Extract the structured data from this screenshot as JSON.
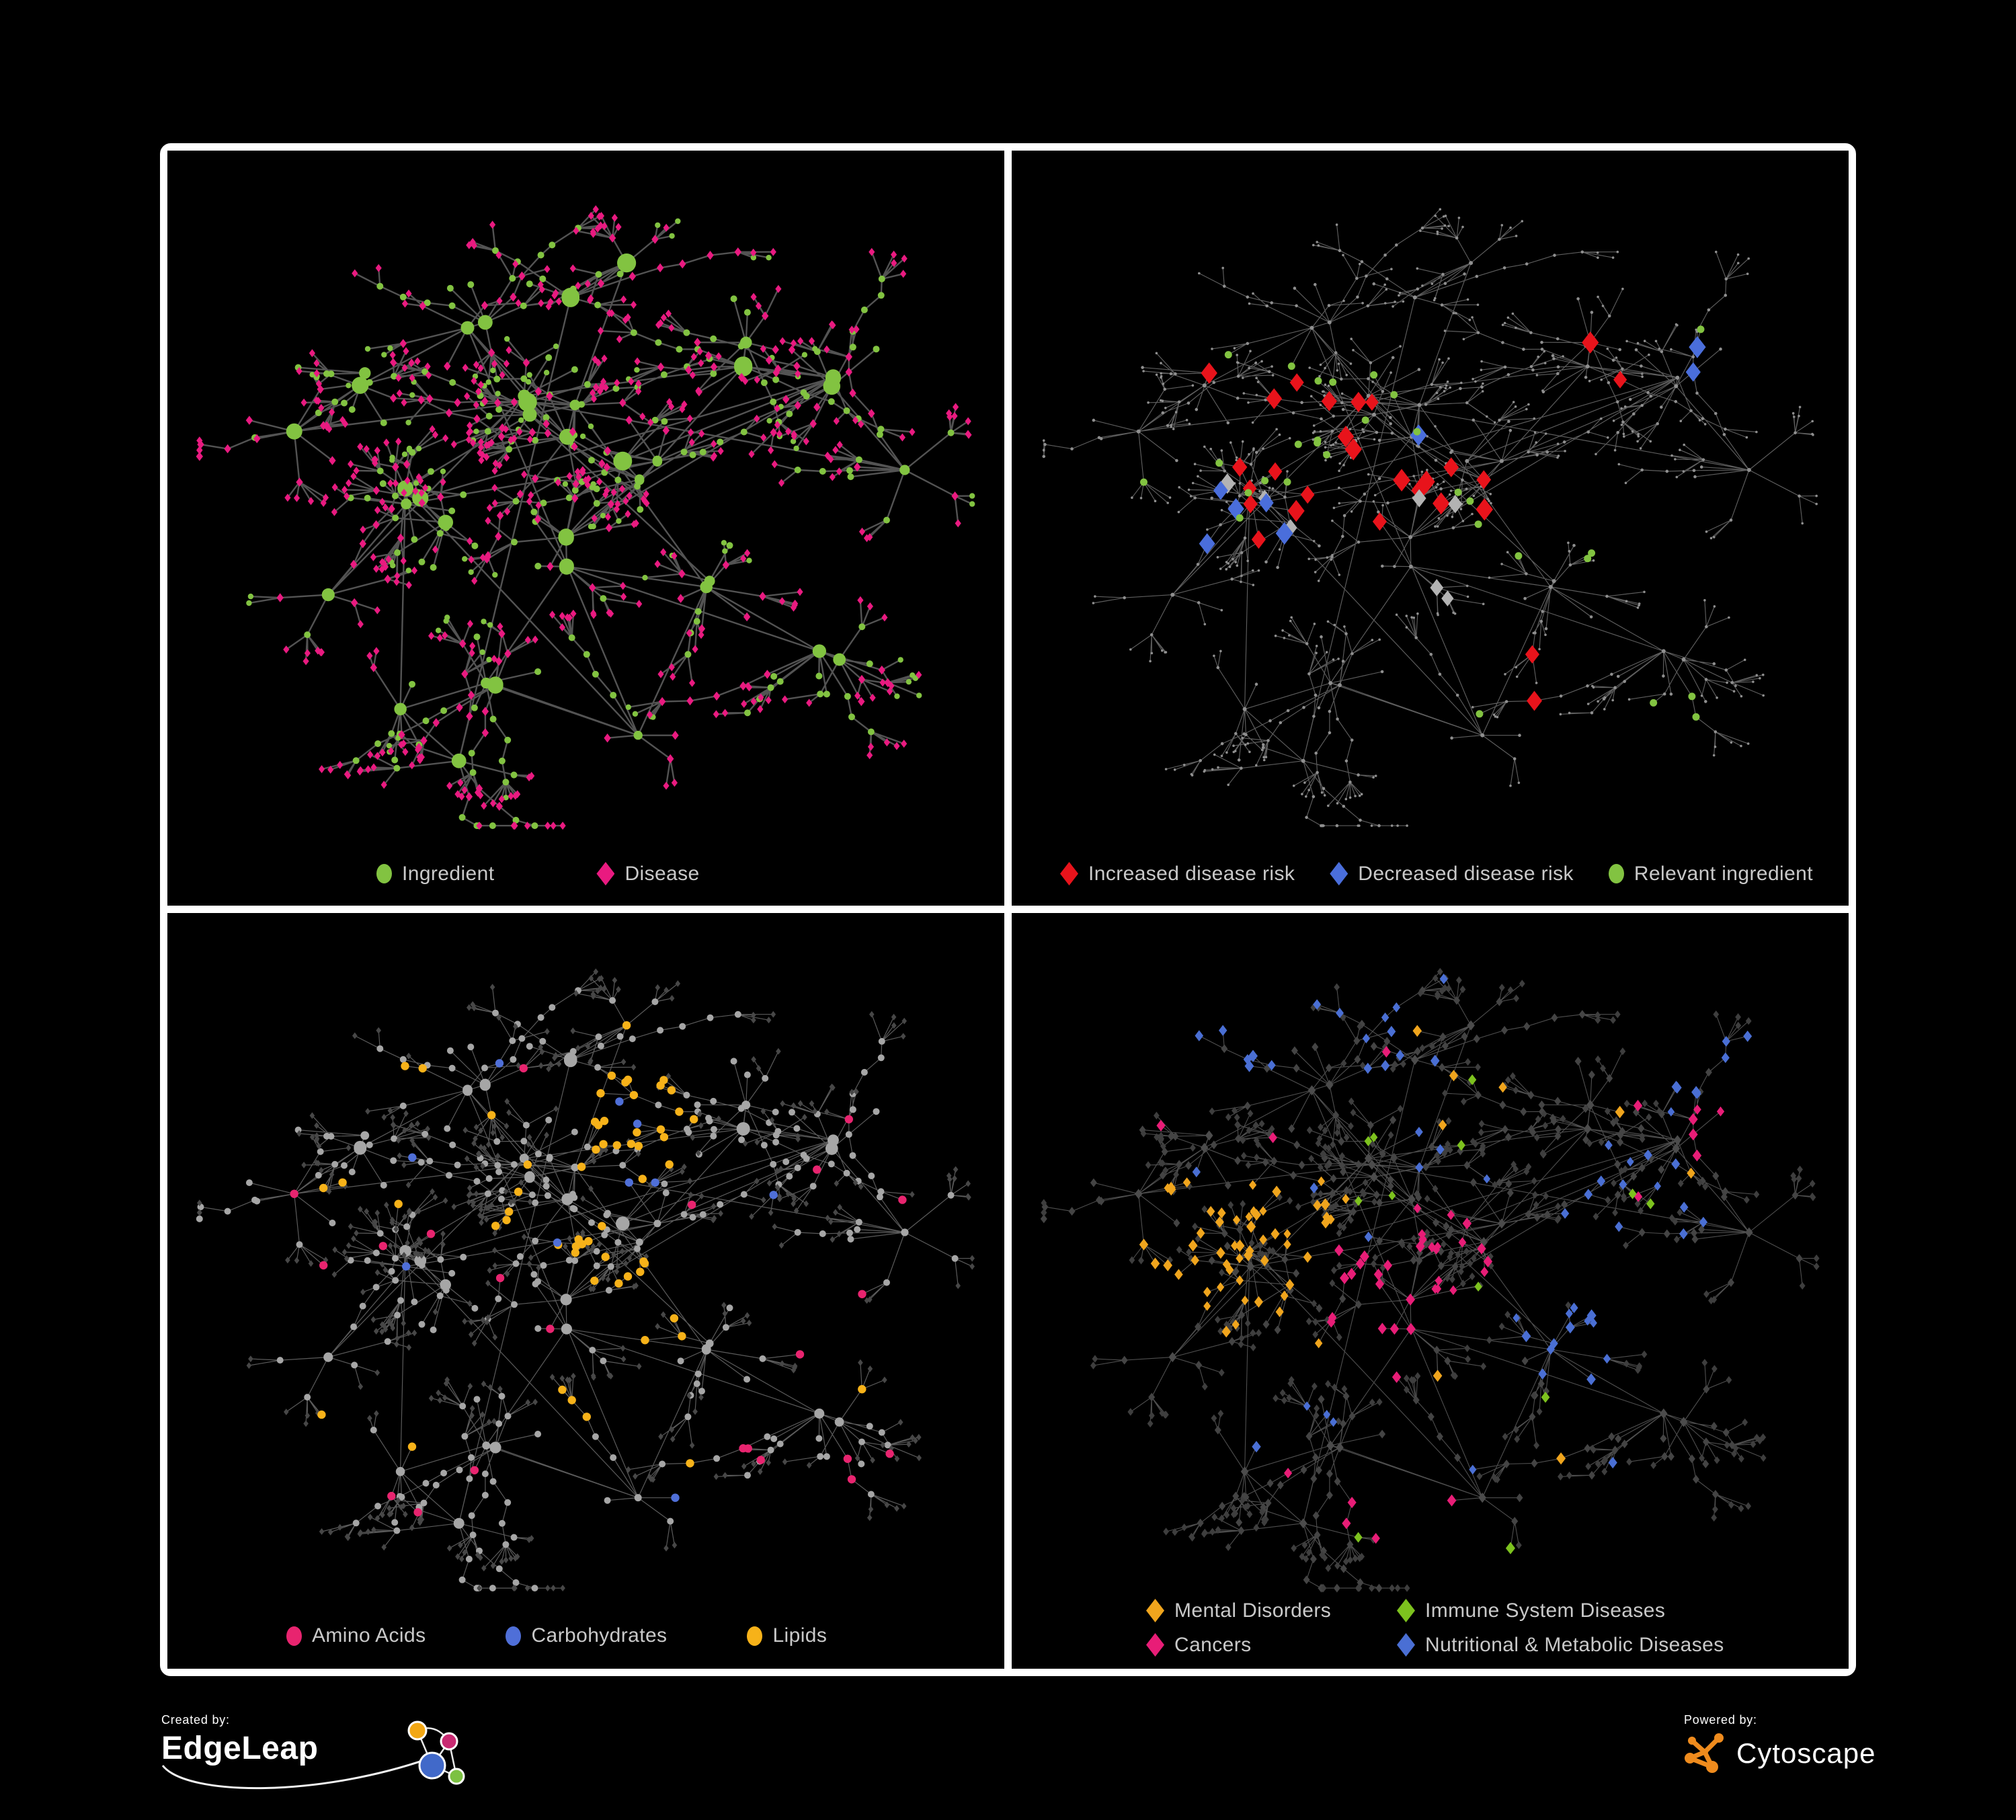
{
  "page": {
    "background": "#000000",
    "frame_border_color": "#FFFFFF"
  },
  "branding": {
    "created_by": {
      "label": "Created by:",
      "brand": "EdgeLeap",
      "logo_colors": {
        "orange": "#F2A714",
        "pink": "#C82A72",
        "blue": "#4169C9",
        "green": "#7CC142",
        "stroke": "#FFFFFF"
      }
    },
    "powered_by": {
      "label": "Powered by:",
      "brand": "Cytoscape",
      "logo_color": "#EF8B1D"
    }
  },
  "chart_data": {
    "type": "network",
    "title": "",
    "description": "Four coordinated views of one ingredient-disease association network (same topology, different node colorings), rendered on black with white panel frames.",
    "background": "#000000",
    "legend_text_color": "#C9C9C9",
    "topology": {
      "seed": 20240,
      "extra_links": 20,
      "clusters": [
        {
          "x": 0.44,
          "y": 0.38,
          "hubs": 5,
          "spread": 0.1
        },
        {
          "x": 0.3,
          "y": 0.5,
          "hubs": 4,
          "spread": 0.09
        },
        {
          "x": 0.55,
          "y": 0.47,
          "hubs": 3,
          "spread": 0.08
        },
        {
          "x": 0.47,
          "y": 0.57,
          "hubs": 2,
          "spread": 0.06
        },
        {
          "x": 0.52,
          "y": 0.18,
          "hubs": 2,
          "spread": 0.08
        },
        {
          "x": 0.35,
          "y": 0.22,
          "hubs": 2,
          "spread": 0.07
        },
        {
          "x": 0.24,
          "y": 0.33,
          "hubs": 2,
          "spread": 0.06
        },
        {
          "x": 0.12,
          "y": 0.42,
          "hubs": 1,
          "spread": 0.05
        },
        {
          "x": 0.68,
          "y": 0.27,
          "hubs": 2,
          "spread": 0.06
        },
        {
          "x": 0.82,
          "y": 0.33,
          "hubs": 2,
          "spread": 0.07
        },
        {
          "x": 0.9,
          "y": 0.45,
          "hubs": 1,
          "spread": 0.05
        },
        {
          "x": 0.66,
          "y": 0.6,
          "hubs": 2,
          "spread": 0.06
        },
        {
          "x": 0.8,
          "y": 0.73,
          "hubs": 2,
          "spread": 0.06
        },
        {
          "x": 0.55,
          "y": 0.85,
          "hubs": 1,
          "spread": 0.05
        },
        {
          "x": 0.4,
          "y": 0.75,
          "hubs": 2,
          "spread": 0.06
        },
        {
          "x": 0.25,
          "y": 0.8,
          "hubs": 1,
          "spread": 0.05
        },
        {
          "x": 0.17,
          "y": 0.65,
          "hubs": 1,
          "spread": 0.05
        },
        {
          "x": 0.33,
          "y": 0.9,
          "hubs": 1,
          "spread": 0.04
        }
      ]
    },
    "panels": [
      {
        "id": "ingredient-disease",
        "position": "top-left",
        "palette": {
          "ingredient": "#82C341",
          "disease": "#E91A80"
        },
        "style": {
          "edge_color": "#5C5C5C",
          "edge_width": 2.4,
          "edge_opacity": 0.9
        },
        "approx_counts": {
          "ingredient": 240,
          "disease": 450
        },
        "legend": [
          {
            "shape": "circle",
            "color": "#82C341",
            "label": "Ingredient"
          },
          {
            "shape": "diamond",
            "color": "#E91A80",
            "label": "Disease"
          }
        ]
      },
      {
        "id": "disease-risk",
        "position": "top-right",
        "style": {
          "edge_color": "#6E6E6E",
          "edge_width": 1.15,
          "edge_opacity": 0.85,
          "base_color": "#8F8F8F"
        },
        "approx_counts": {
          "increased": 27,
          "decreased": 9,
          "other": 7,
          "relevant": 29
        },
        "legend": [
          {
            "shape": "diamond",
            "color": "#E8131B",
            "label": "Increased disease risk"
          },
          {
            "shape": "diamond",
            "color": "#4A6EDB",
            "label": "Decreased disease risk"
          },
          {
            "shape": "circle",
            "color": "#82C341",
            "label": "Relevant ingredient"
          }
        ],
        "highlights": [
          {
            "role": "increased",
            "color": "#E8131B",
            "shape": "diamond",
            "size": 11.5,
            "types": [
              "mid",
              "hub"
            ],
            "regions": [
              {
                "cx": 0.42,
                "cy": 0.44,
                "r": 0.16,
                "count": 13
              },
              {
                "cx": 0.3,
                "cy": 0.5,
                "r": 0.09,
                "count": 4
              },
              {
                "cx": 0.55,
                "cy": 0.52,
                "r": 0.1,
                "count": 4
              },
              {
                "cx": 0.64,
                "cy": 0.74,
                "r": 0.07,
                "count": 2
              },
              {
                "cx": 0.7,
                "cy": 0.3,
                "r": 0.06,
                "count": 2
              },
              {
                "cx": 0.24,
                "cy": 0.38,
                "r": 0.08,
                "count": 2
              }
            ]
          },
          {
            "role": "decreased",
            "color": "#4A6EDB",
            "shape": "diamond",
            "size": 11.5,
            "types": [
              "mid",
              "hub"
            ],
            "regions": [
              {
                "cx": 0.27,
                "cy": 0.53,
                "r": 0.08,
                "count": 5
              },
              {
                "cx": 0.86,
                "cy": 0.27,
                "r": 0.05,
                "count": 2
              },
              {
                "cx": 0.13,
                "cy": 0.55,
                "r": 0.06,
                "count": 1
              },
              {
                "cx": 0.44,
                "cy": 0.4,
                "r": 0.08,
                "count": 1
              }
            ]
          },
          {
            "role": "other",
            "color": "#B3B3B3",
            "shape": "diamond",
            "size": 10.5,
            "types": [
              "mid",
              "hub"
            ],
            "regions": [
              {
                "cx": 0.3,
                "cy": 0.45,
                "r": 0.1,
                "count": 3
              },
              {
                "cx": 0.47,
                "cy": 0.53,
                "r": 0.1,
                "count": 2
              },
              {
                "cx": 0.56,
                "cy": 0.62,
                "r": 0.08,
                "count": 2
              }
            ]
          },
          {
            "role": "relevant",
            "color": "#82C341",
            "shape": "circle",
            "size": 5.5,
            "types": [
              "mid",
              "leaf"
            ],
            "regions": [
              {
                "cx": 0.42,
                "cy": 0.45,
                "r": 0.14,
                "count": 10
              },
              {
                "cx": 0.27,
                "cy": 0.47,
                "r": 0.11,
                "count": 6
              },
              {
                "cx": 0.62,
                "cy": 0.6,
                "r": 0.09,
                "count": 4
              },
              {
                "cx": 0.8,
                "cy": 0.77,
                "r": 0.08,
                "count": 3
              },
              {
                "cx": 0.3,
                "cy": 0.32,
                "r": 0.08,
                "count": 3
              },
              {
                "cx": 0.14,
                "cy": 0.52,
                "r": 0.06,
                "count": 1
              },
              {
                "cx": 0.55,
                "cy": 0.85,
                "r": 0.06,
                "count": 1
              },
              {
                "cx": 0.88,
                "cy": 0.27,
                "r": 0.05,
                "count": 1
              }
            ]
          }
        ]
      },
      {
        "id": "nutrient-classes",
        "position": "bottom-left",
        "style": {
          "edge_color": "#7A7A7A",
          "edge_width": 1.2,
          "edge_opacity": 0.75,
          "leaf_color": "#474747",
          "node_color": "#A6A6A6"
        },
        "approx_counts": {
          "amino_acids": 22,
          "carbohydrates": 10,
          "lipids": 60
        },
        "legend": [
          {
            "shape": "circle",
            "color": "#E8246F",
            "label": "Amino Acids"
          },
          {
            "shape": "circle",
            "color": "#4F6FD8",
            "label": "Carbohydrates"
          },
          {
            "shape": "circle",
            "color": "#F7B219",
            "label": "Lipids"
          }
        ],
        "highlights": [
          {
            "role": "lipids",
            "color": "#F7B219",
            "shape": "circle",
            "size": 6.2,
            "regions": [
              {
                "cx": 0.55,
                "cy": 0.3,
                "r": 0.09,
                "count": 24
              },
              {
                "cx": 0.47,
                "cy": 0.42,
                "r": 0.09,
                "count": 12
              },
              {
                "cx": 0.6,
                "cy": 0.55,
                "r": 0.07,
                "count": 8
              },
              {
                "cx": 0.45,
                "cy": 0.7,
                "r": 0.06,
                "count": 3
              },
              {
                "cx": 0.5,
                "cy": 0.5,
                "r": 0.45,
                "count": 13
              }
            ]
          },
          {
            "role": "amino_acids",
            "color": "#E8246F",
            "shape": "circle",
            "size": 6.2,
            "regions": [
              {
                "cx": 0.8,
                "cy": 0.72,
                "r": 0.12,
                "count": 6
              },
              {
                "cx": 0.3,
                "cy": 0.83,
                "r": 0.09,
                "count": 3
              },
              {
                "cx": 0.5,
                "cy": 0.5,
                "r": 0.45,
                "count": 13
              }
            ]
          },
          {
            "role": "carbohydrates",
            "color": "#4F6FD8",
            "shape": "circle",
            "size": 6.2,
            "regions": [
              {
                "cx": 0.55,
                "cy": 0.32,
                "r": 0.07,
                "count": 4
              },
              {
                "cx": 0.5,
                "cy": 0.5,
                "r": 0.45,
                "count": 6
              }
            ]
          }
        ]
      },
      {
        "id": "disease-classes",
        "position": "bottom-right",
        "style": {
          "edge_color": "#6A6A6A",
          "edge_width": 1.1,
          "edge_opacity": 0.75,
          "leaf_color": "#3E3E3E",
          "mid_color": "#444444",
          "hub_color": "#4C4C4C"
        },
        "approx_counts": {
          "mental_disorders": 64,
          "immune_system_diseases": 12,
          "cancers": 48,
          "nutritional_metabolic_diseases": 64
        },
        "legend": [
          {
            "shape": "diamond",
            "color": "#F0A51D",
            "label": "Mental Disorders"
          },
          {
            "shape": "diamond",
            "color": "#7DC21E",
            "label": "Immune System Diseases"
          },
          {
            "shape": "diamond",
            "color": "#E81D77",
            "label": "Cancers"
          },
          {
            "shape": "diamond",
            "color": "#4A6FD4",
            "label": "Nutritional & Metabolic Diseases"
          }
        ],
        "highlights": [
          {
            "role": "mental_disorders",
            "color": "#F0A51D",
            "shape": "diamond",
            "size": 6.2,
            "regions": [
              {
                "cx": 0.22,
                "cy": 0.48,
                "r": 0.13,
                "count": 46
              },
              {
                "cx": 0.33,
                "cy": 0.42,
                "r": 0.07,
                "count": 8
              },
              {
                "cx": 0.5,
                "cy": 0.5,
                "r": 0.45,
                "count": 10
              }
            ]
          },
          {
            "role": "cancers",
            "color": "#E81D77",
            "shape": "diamond",
            "size": 6.2,
            "regions": [
              {
                "cx": 0.48,
                "cy": 0.51,
                "r": 0.1,
                "count": 24
              },
              {
                "cx": 0.43,
                "cy": 0.58,
                "r": 0.07,
                "count": 8
              },
              {
                "cx": 0.88,
                "cy": 0.3,
                "r": 0.06,
                "count": 5
              },
              {
                "cx": 0.46,
                "cy": 0.87,
                "r": 0.07,
                "count": 4
              },
              {
                "cx": 0.5,
                "cy": 0.5,
                "r": 0.45,
                "count": 7
              }
            ]
          },
          {
            "role": "nutritional_metabolic_diseases",
            "color": "#4A6FD4",
            "shape": "diamond",
            "size": 6.2,
            "regions": [
              {
                "cx": 0.67,
                "cy": 0.6,
                "r": 0.08,
                "count": 12
              },
              {
                "cx": 0.78,
                "cy": 0.42,
                "r": 0.11,
                "count": 10
              },
              {
                "cx": 0.86,
                "cy": 0.22,
                "r": 0.08,
                "count": 8
              },
              {
                "cx": 0.42,
                "cy": 0.12,
                "r": 0.1,
                "count": 8
              },
              {
                "cx": 0.25,
                "cy": 0.14,
                "r": 0.1,
                "count": 6
              },
              {
                "cx": 0.55,
                "cy": 0.33,
                "r": 0.07,
                "count": 4
              },
              {
                "cx": 0.33,
                "cy": 0.72,
                "r": 0.08,
                "count": 4
              },
              {
                "cx": 0.5,
                "cy": 0.5,
                "r": 0.45,
                "count": 12
              }
            ]
          },
          {
            "role": "immune_system_diseases",
            "color": "#7DC21E",
            "shape": "diamond",
            "size": 6.2,
            "regions": [
              {
                "cx": 0.5,
                "cy": 0.45,
                "r": 0.3,
                "count": 10
              },
              {
                "cx": 0.4,
                "cy": 0.9,
                "r": 0.06,
                "count": 1
              },
              {
                "cx": 0.62,
                "cy": 0.92,
                "r": 0.05,
                "count": 1
              }
            ]
          }
        ]
      }
    ]
  }
}
